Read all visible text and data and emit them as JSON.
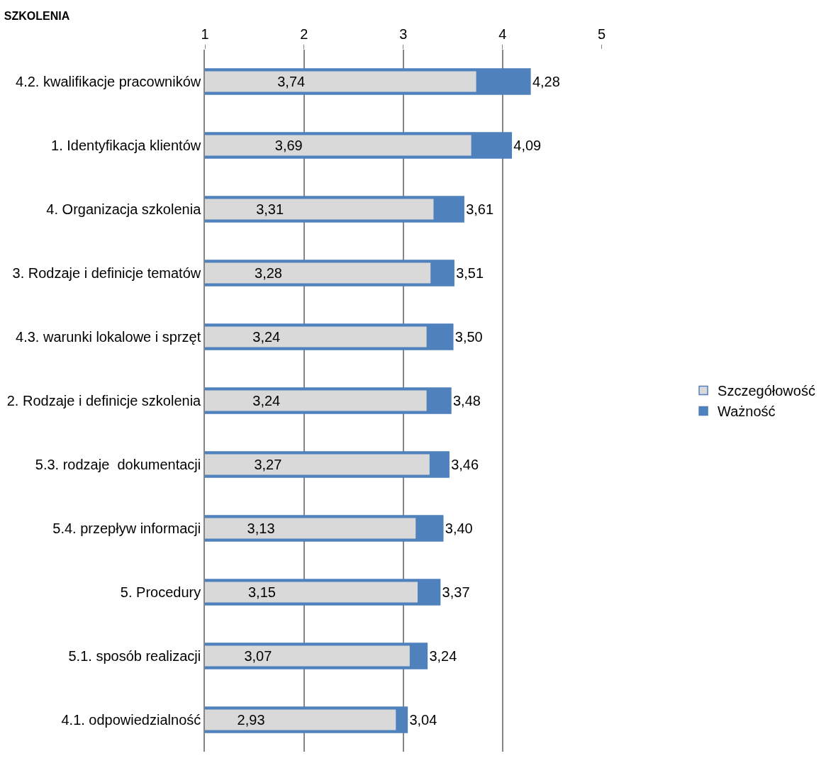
{
  "chart_data": {
    "type": "bar",
    "orientation": "horizontal",
    "title": "SZKOLENIA",
    "categories": [
      "4.2. kwalifikacje pracowników",
      "1. Identyfikacja klientów",
      "4. Organizacja szkolenia",
      "3. Rodzaje i definicje tematów",
      "4.3. warunki lokalowe i sprzęt",
      "2. Rodzaje i definicje szkolenia",
      "5.3. rodzaje  dokumentacji",
      "5.4. przepływ informacji",
      "5. Procedury",
      "5.1. sposób realizacji",
      "4.1. odpowiedzialność"
    ],
    "series": [
      {
        "name": "Ważność",
        "color": "#4f81bd",
        "values": [
          4.28,
          4.09,
          3.61,
          3.51,
          3.5,
          3.48,
          3.46,
          3.4,
          3.37,
          3.24,
          3.04
        ],
        "value_labels": [
          "4,28",
          "4,09",
          "3,61",
          "3,51",
          "3,50",
          "3,48",
          "3,46",
          "3,40",
          "3,37",
          "3,24",
          "3,04"
        ]
      },
      {
        "name": "Szczegółowość",
        "color": "#d9d9d9",
        "values": [
          3.74,
          3.69,
          3.31,
          3.28,
          3.24,
          3.24,
          3.27,
          3.13,
          3.15,
          3.07,
          2.93
        ],
        "value_labels": [
          "3,74",
          "3,69",
          "3,31",
          "3,28",
          "3,24",
          "3,24",
          "3,27",
          "3,13",
          "3,15",
          "3,07",
          "2,93"
        ]
      }
    ],
    "xlim": [
      1,
      5
    ],
    "xticks": [
      1,
      2,
      3,
      4,
      5
    ],
    "grid": "x",
    "legend": "right"
  }
}
